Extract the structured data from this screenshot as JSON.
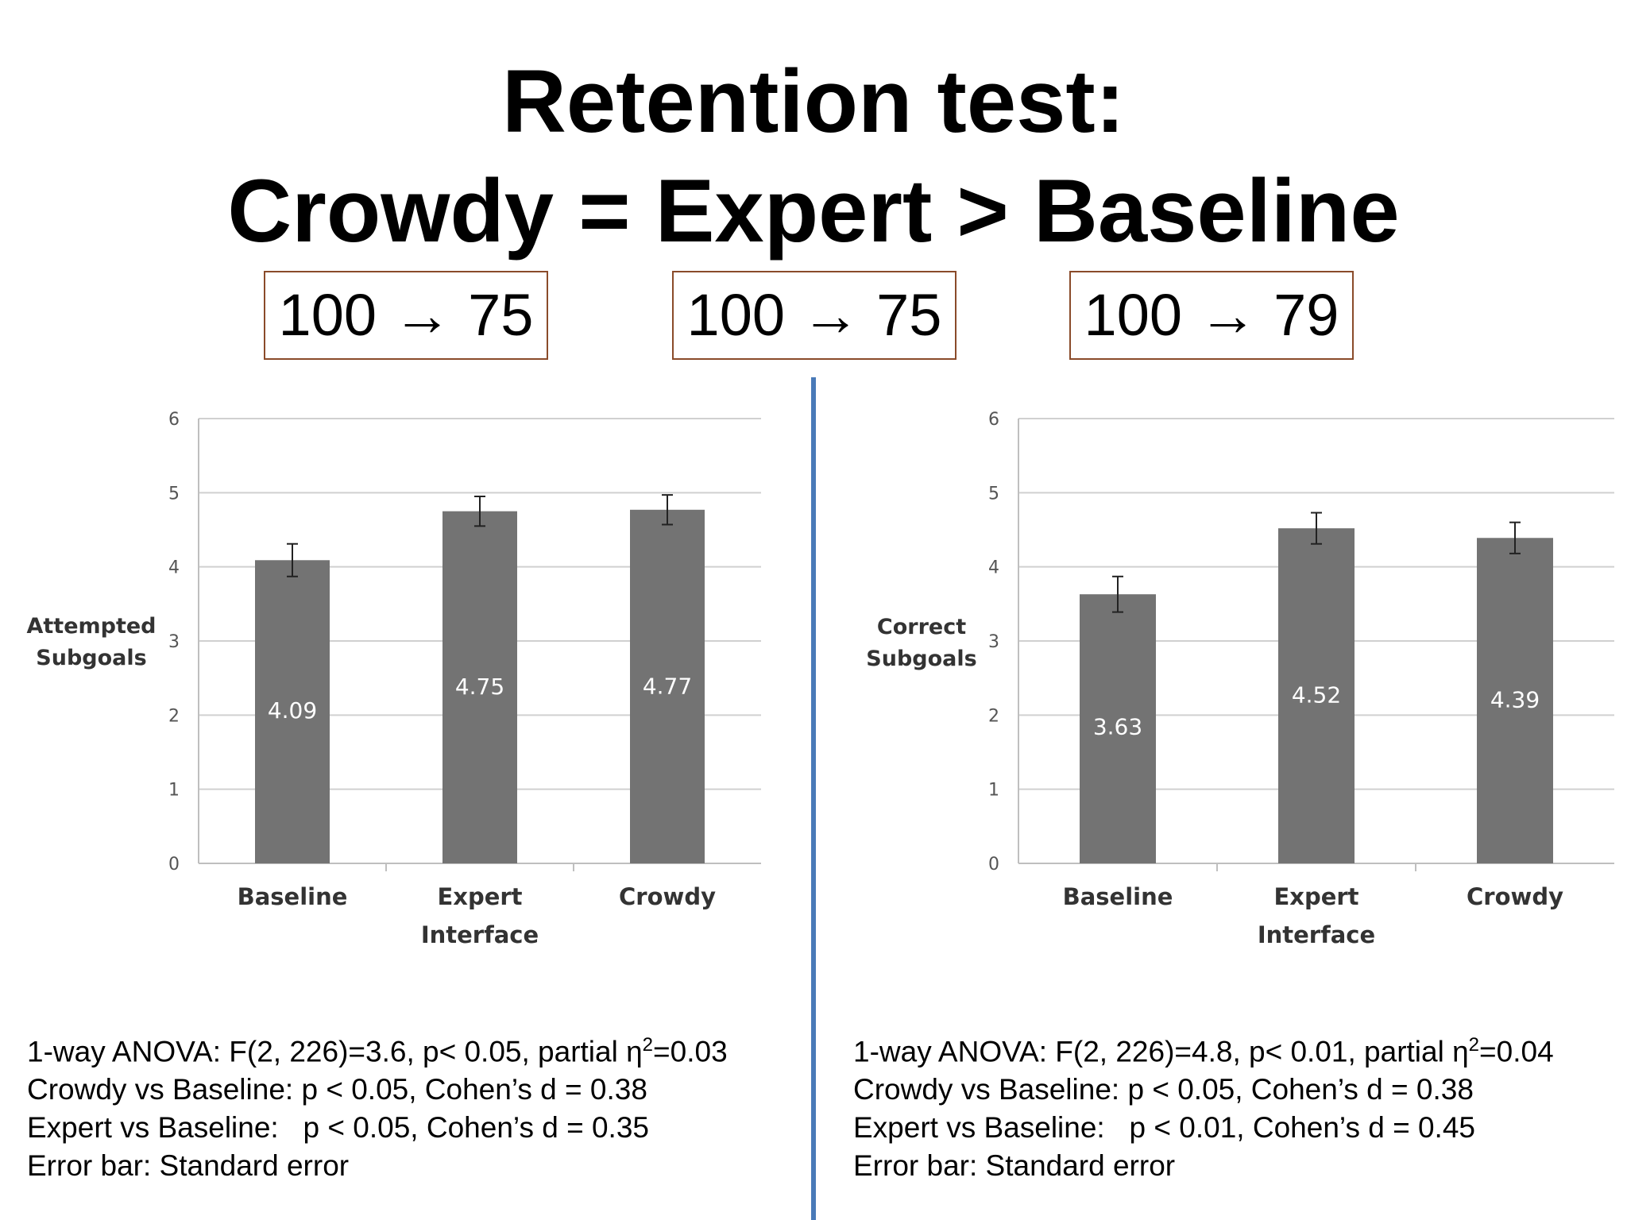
{
  "title": {
    "line1": "Retention test:",
    "line2": "Crowdy = Expert > Baseline"
  },
  "boxes": [
    "100 → 75",
    "100 → 75",
    "100 → 79"
  ],
  "colors": {
    "bar": "#737373",
    "divider": "#4a7ab8",
    "box_border": "#8a4b2a"
  },
  "chart_data": [
    {
      "type": "bar",
      "categories": [
        "Baseline",
        "Expert Interface",
        "Crowdy"
      ],
      "category_lines": [
        [
          "Baseline"
        ],
        [
          "Expert",
          "Interface"
        ],
        [
          "Crowdy"
        ]
      ],
      "values": [
        4.09,
        4.75,
        4.77
      ],
      "value_labels": [
        "4.09",
        "4.75",
        "4.77"
      ],
      "error": [
        0.22,
        0.2,
        0.2
      ],
      "ylabel_lines": [
        "Attempted",
        "Subgoals"
      ],
      "yticks": [
        0,
        1,
        2,
        3,
        4,
        5,
        6
      ],
      "ylim": [
        0,
        6
      ],
      "grid": true,
      "error_bar": "Standard error"
    },
    {
      "type": "bar",
      "categories": [
        "Baseline",
        "Expert Interface",
        "Crowdy"
      ],
      "category_lines": [
        [
          "Baseline"
        ],
        [
          "Expert",
          "Interface"
        ],
        [
          "Crowdy"
        ]
      ],
      "values": [
        3.63,
        4.52,
        4.39
      ],
      "value_labels": [
        "3.63",
        "4.52",
        "4.39"
      ],
      "error": [
        0.24,
        0.21,
        0.21
      ],
      "ylabel_lines": [
        "Correct",
        "Subgoals"
      ],
      "yticks": [
        0,
        1,
        2,
        3,
        4,
        5,
        6
      ],
      "ylim": [
        0,
        6
      ],
      "grid": true,
      "error_bar": "Standard error"
    }
  ],
  "stats": {
    "left": {
      "anova_prefix": "1-way ANOVA: F(2, 226)=3.6, p< 0.05, partial η",
      "anova_sup": "2",
      "anova_suffix": "=0.03",
      "crowdy_vs_baseline": "Crowdy vs Baseline: p < 0.05, Cohen’s d = 0.38",
      "expert_vs_baseline": "Expert vs Baseline:   p < 0.05, Cohen’s d = 0.35",
      "error_bar": "Error bar: Standard error"
    },
    "right": {
      "anova_prefix": "1-way ANOVA: F(2, 226)=4.8, p< 0.01, partial η",
      "anova_sup": "2",
      "anova_suffix": "=0.04",
      "crowdy_vs_baseline": "Crowdy vs Baseline: p < 0.05, Cohen’s d = 0.38",
      "expert_vs_baseline": "Expert vs Baseline:   p < 0.01, Cohen’s d = 0.45",
      "error_bar": "Error bar: Standard error"
    }
  }
}
